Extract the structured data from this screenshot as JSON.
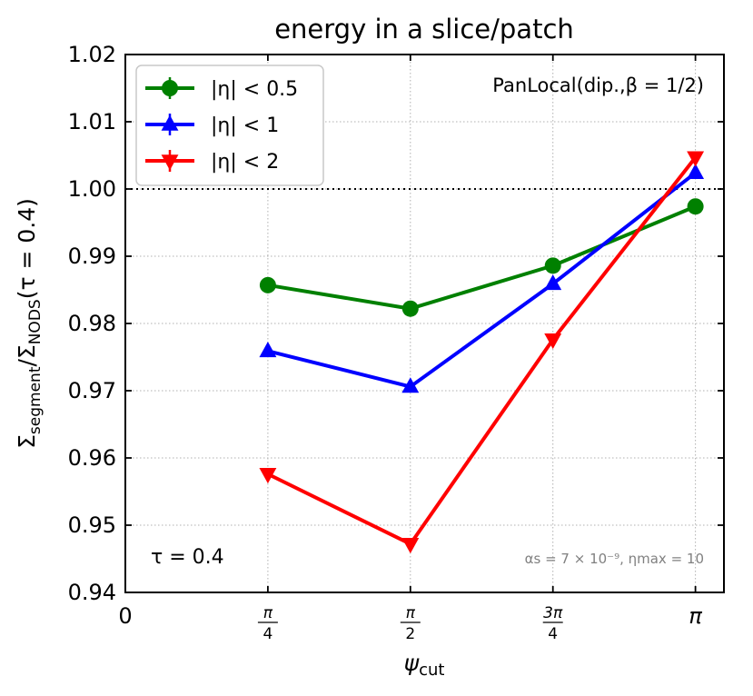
{
  "chart_data": {
    "type": "line",
    "title": "energy in a slice/patch",
    "xlabel": {
      "main": "ψ",
      "sub": "cut"
    },
    "ylabel": {
      "main": "Σ",
      "sub1": "segment",
      "mid": "/Σ",
      "sub2": "NODS",
      "tail": "(τ = 0.4)"
    },
    "x_ticks": [
      {
        "value": 0,
        "label": "0"
      },
      {
        "value": 0.25,
        "num": "π",
        "den": "4"
      },
      {
        "value": 0.5,
        "num": "π",
        "den": "2"
      },
      {
        "value": 0.75,
        "num": "3π",
        "den": "4"
      },
      {
        "value": 1.0,
        "label": "π"
      }
    ],
    "xlim": [
      0,
      1.05
    ],
    "ylim": [
      0.94,
      1.02
    ],
    "y_ticks": [
      0.94,
      0.95,
      0.96,
      0.97,
      0.98,
      0.99,
      1.0,
      1.01,
      1.02
    ],
    "y_tick_labels": [
      "0.94",
      "0.95",
      "0.96",
      "0.97",
      "0.98",
      "0.99",
      "1.00",
      "1.01",
      "1.02"
    ],
    "reference_line": 1.0,
    "grid": true,
    "legend_position": "top-left",
    "series": [
      {
        "name": "|η| < 0.5",
        "color": "#008000",
        "marker": "circle",
        "x": [
          0.25,
          0.5,
          0.75,
          1.0
        ],
        "values": [
          0.9857,
          0.9822,
          0.9886,
          0.9974
        ]
      },
      {
        "name": "|η| < 1",
        "color": "#0000ff",
        "marker": "triangle-up",
        "x": [
          0.25,
          0.5,
          0.75,
          1.0
        ],
        "values": [
          0.9759,
          0.9706,
          0.9859,
          1.0024
        ]
      },
      {
        "name": "|η| < 2",
        "color": "#ff0000",
        "marker": "triangle-down",
        "x": [
          0.25,
          0.5,
          0.75,
          1.0
        ],
        "values": [
          0.9576,
          0.9472,
          0.9776,
          1.0047
        ]
      }
    ],
    "annotations": {
      "shower": "PanLocal(dip.,β = 1/2)",
      "tau": "τ = 0.4",
      "params": "αs = 7 × 10⁻⁹, ηmax = 10"
    }
  }
}
